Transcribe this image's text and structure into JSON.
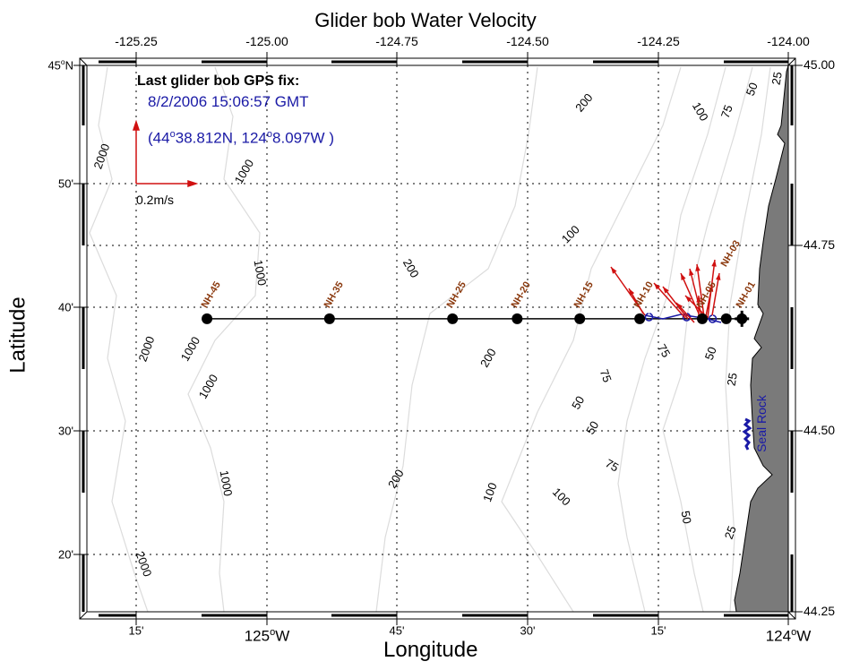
{
  "title": "Glider bob Water Velocity",
  "xlabel": "Longitude",
  "ylabel": "Latitude",
  "top_ticks": [
    "-125.25",
    "-125.00",
    "-124.75",
    "-124.50",
    "-124.25",
    "-124.00"
  ],
  "right_ticks": [
    "45.00",
    "44.75",
    "44.50",
    "44.25"
  ],
  "bottom_ticks": [
    {
      "main": "15'",
      "deg": "",
      "sup": "",
      "hem": ""
    },
    {
      "main": "125",
      "deg": "",
      "sup": "o",
      "hem": "W"
    },
    {
      "main": "45'",
      "deg": "",
      "sup": "",
      "hem": ""
    },
    {
      "main": "30'",
      "deg": "",
      "sup": "",
      "hem": ""
    },
    {
      "main": "15'",
      "deg": "",
      "sup": "",
      "hem": ""
    },
    {
      "main": "124",
      "deg": "",
      "sup": "o",
      "hem": "W"
    }
  ],
  "left_ticks": [
    {
      "main": "45",
      "sup": "o",
      "hem": "N"
    },
    {
      "main": "50'",
      "sup": "",
      "hem": ""
    },
    {
      "main": "40'",
      "sup": "",
      "hem": ""
    },
    {
      "main": "30'",
      "sup": "",
      "hem": ""
    },
    {
      "main": "20'",
      "sup": "",
      "hem": ""
    }
  ],
  "gps_fix": {
    "heading": "Last glider bob GPS fix:",
    "datetime": "8/2/2006 15:06:57 GMT",
    "lat_deg": "44",
    "lat_min": "38.812N",
    "lon_deg": "124",
    "lon_min": "8.097W"
  },
  "scale_label": "0.2m/s",
  "landmark": "Seal Rock",
  "stations": [
    {
      "name": "NH-45",
      "lon": -125.115,
      "lat": 44.652
    },
    {
      "name": "NH-35",
      "lon": -124.88,
      "lat": 44.652
    },
    {
      "name": "NH-25",
      "lon": -124.644,
      "lat": 44.652
    },
    {
      "name": "NH-20",
      "lon": -124.52,
      "lat": 44.652
    },
    {
      "name": "NH-15",
      "lon": -124.4,
      "lat": 44.652
    },
    {
      "name": "NH-10",
      "lon": -124.285,
      "lat": 44.652
    },
    {
      "name": "NH-05",
      "lon": -124.165,
      "lat": 44.652
    },
    {
      "name": "NH-03",
      "lon": -124.119,
      "lat": 44.652
    },
    {
      "name": "NH-01",
      "lon": -124.089,
      "lat": 44.652
    }
  ],
  "contour_labels": [
    "2000",
    "1000",
    "200",
    "100",
    "75",
    "50",
    "25",
    "1000",
    "200",
    "200",
    "100",
    "75",
    "2000",
    "1000",
    "1000",
    "75",
    "50",
    "50",
    "1000",
    "200",
    "100",
    "100",
    "75",
    "50",
    "25",
    "2000",
    "50",
    "25"
  ],
  "colors": {
    "vector": "#d01010",
    "track": "#1a1aa6",
    "station_label": "#8b3a0f",
    "land": "#7a7a7a",
    "contour": "#d8d8d8"
  }
}
